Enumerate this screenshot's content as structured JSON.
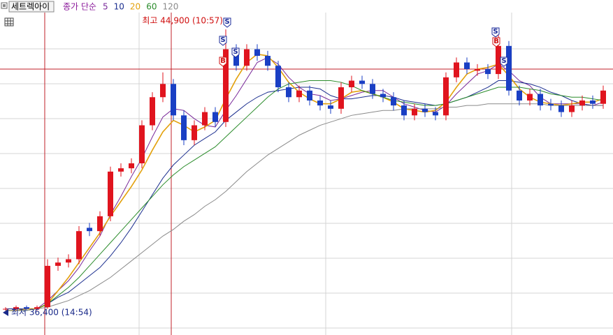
{
  "chart_data": {
    "type": "candlestick",
    "title": "세트렉아이",
    "subtitle": "종가 단순",
    "ylim": [
      35870,
      45430
    ],
    "up_color": "#e0141e",
    "down_color": "#1a3fc4",
    "open": [
      36450,
      36450,
      36500,
      36450,
      36500,
      37750,
      37850,
      37950,
      38900,
      38800,
      39250,
      40600,
      40700,
      40850,
      42000,
      42850,
      43250,
      42300,
      41550,
      42000,
      42400,
      42100,
      44300,
      43800,
      44300,
      44100,
      43800,
      43150,
      42850,
      43050,
      42750,
      42600,
      42500,
      43150,
      43350,
      43250,
      42950,
      42850,
      42600,
      42300,
      42500,
      42400,
      42300,
      43450,
      43900,
      43650,
      43700,
      43550,
      44400,
      43050,
      42750,
      42950,
      42650,
      42600,
      42400,
      42600,
      42750,
      42650
    ],
    "high": [
      36500,
      36550,
      36550,
      36550,
      37950,
      38000,
      38100,
      38950,
      39050,
      39400,
      40750,
      40850,
      41000,
      42150,
      43000,
      43600,
      43400,
      42450,
      42150,
      42550,
      42550,
      44900,
      44450,
      44450,
      44450,
      44250,
      43950,
      43300,
      43200,
      43200,
      42900,
      42750,
      43300,
      43500,
      43500,
      43400,
      43100,
      43000,
      42750,
      42650,
      42650,
      42550,
      43600,
      44050,
      44050,
      43850,
      43850,
      44800,
      44550,
      43200,
      43100,
      43100,
      42800,
      42750,
      42750,
      42900,
      42900,
      43200
    ],
    "low": [
      36400,
      36400,
      36400,
      36400,
      36450,
      37600,
      37700,
      37800,
      38650,
      38650,
      39100,
      40450,
      40550,
      40700,
      41850,
      42700,
      42150,
      41400,
      41400,
      41850,
      41950,
      41950,
      43650,
      43650,
      43950,
      43650,
      43000,
      42700,
      42700,
      42600,
      42450,
      42350,
      42350,
      43000,
      43100,
      42800,
      42700,
      42450,
      42150,
      42150,
      42250,
      42150,
      42150,
      43300,
      43550,
      43500,
      43400,
      43400,
      42900,
      42600,
      42600,
      42450,
      42450,
      42250,
      42250,
      42450,
      42500,
      42500
    ],
    "close": [
      36450,
      36500,
      36450,
      36500,
      37750,
      37850,
      37950,
      38800,
      38800,
      39250,
      40600,
      40700,
      40850,
      42000,
      42850,
      43250,
      42300,
      41550,
      42000,
      42400,
      42100,
      44300,
      43800,
      44300,
      44100,
      43800,
      43150,
      42850,
      43050,
      42750,
      42600,
      42500,
      43150,
      43350,
      43250,
      42950,
      42850,
      42600,
      42300,
      42500,
      42400,
      42300,
      43450,
      43900,
      43700,
      43700,
      43550,
      44400,
      43050,
      42750,
      42950,
      42600,
      42600,
      42400,
      42600,
      42750,
      42650,
      43050
    ],
    "series": [
      {
        "name": "5",
        "color": "#7a2a9a",
        "values": [
          36450,
          36450,
          36450,
          36450,
          36700,
          37000,
          37300,
          37700,
          38200,
          38650,
          39300,
          39850,
          40450,
          41000,
          41650,
          42250,
          42500,
          42450,
          42200,
          42000,
          41950,
          42450,
          42900,
          43400,
          43900,
          44050,
          43850,
          43450,
          43150,
          42950,
          42900,
          42750,
          42800,
          42900,
          43000,
          43050,
          43050,
          42850,
          42650,
          42550,
          42450,
          42400,
          42600,
          42950,
          43250,
          43550,
          43650,
          43850,
          43650,
          43350,
          43200,
          42850,
          42650,
          42650,
          42650,
          42650,
          42600,
          42700
        ]
      },
      {
        "name": "10",
        "color": "#1c2f8f",
        "values": [
          36450,
          36450,
          36450,
          36450,
          36600,
          36800,
          36950,
          37200,
          37450,
          37700,
          38050,
          38450,
          38900,
          39400,
          39900,
          40400,
          40800,
          41100,
          41400,
          41600,
          41800,
          42150,
          42400,
          42650,
          42850,
          43000,
          43050,
          43100,
          43150,
          43150,
          43100,
          42900,
          42800,
          42800,
          42850,
          42900,
          42900,
          42850,
          42750,
          42700,
          42650,
          42600,
          42650,
          42750,
          42850,
          43000,
          43150,
          43350,
          43350,
          43300,
          43250,
          43150,
          43000,
          42900,
          42750,
          42650,
          42600,
          42600
        ]
      },
      {
        "name": "20",
        "color": "#e3a10c",
        "values": [
          36400,
          36400,
          36450,
          36450,
          36600,
          37000,
          37400,
          37850,
          38300,
          38750,
          39250,
          39700,
          40150,
          40650,
          41250,
          41800,
          42150,
          42000,
          41800,
          41950,
          42150,
          42800,
          43400,
          43900,
          44150,
          44100,
          43750,
          43300,
          43000,
          42800,
          42650,
          42650,
          42800,
          43000,
          43050,
          42950,
          42850,
          42700,
          42500,
          42450,
          42400,
          42450,
          42700,
          43150,
          43550,
          43700,
          43750,
          43850,
          43500,
          43100,
          42850,
          42700,
          42650,
          42600,
          42650,
          42700,
          42700,
          42800
        ]
      },
      {
        "name": "60",
        "color": "#2b8c2b",
        "values": [
          36400,
          36400,
          36400,
          36450,
          36600,
          36850,
          37100,
          37400,
          37750,
          38100,
          38450,
          38800,
          39150,
          39500,
          39850,
          40200,
          40500,
          40750,
          40950,
          41150,
          41350,
          41650,
          41950,
          42250,
          42550,
          42850,
          43100,
          43250,
          43300,
          43350,
          43350,
          43350,
          43300,
          43200,
          43050,
          42950,
          42850,
          42750,
          42700,
          42650,
          42600,
          42600,
          42650,
          42750,
          42850,
          42950,
          43050,
          43150,
          43150,
          43150,
          43100,
          43050,
          42950,
          42900,
          42850,
          42850,
          42800,
          42750
        ]
      },
      {
        "name": "120",
        "color": "#8a8a8a",
        "values": [
          36400,
          36400,
          36400,
          36450,
          36500,
          36600,
          36700,
          36850,
          37000,
          37200,
          37400,
          37650,
          37900,
          38150,
          38400,
          38650,
          38850,
          39100,
          39300,
          39550,
          39750,
          40000,
          40300,
          40600,
          40850,
          41100,
          41300,
          41500,
          41700,
          41850,
          42000,
          42100,
          42200,
          42300,
          42350,
          42400,
          42450,
          42450,
          42500,
          42500,
          42500,
          42500,
          42550,
          42550,
          42600,
          42600,
          42650,
          42650,
          42650,
          42650,
          42650,
          42650,
          42600,
          42600,
          42600,
          42600,
          42600,
          42600
        ]
      }
    ],
    "annotations": [
      "최고 44,900 (10:57)",
      "최저 36,400 (14:54)"
    ],
    "signals": [
      "S",
      "S",
      "S",
      "B",
      "S",
      "B",
      "S"
    ]
  }
}
